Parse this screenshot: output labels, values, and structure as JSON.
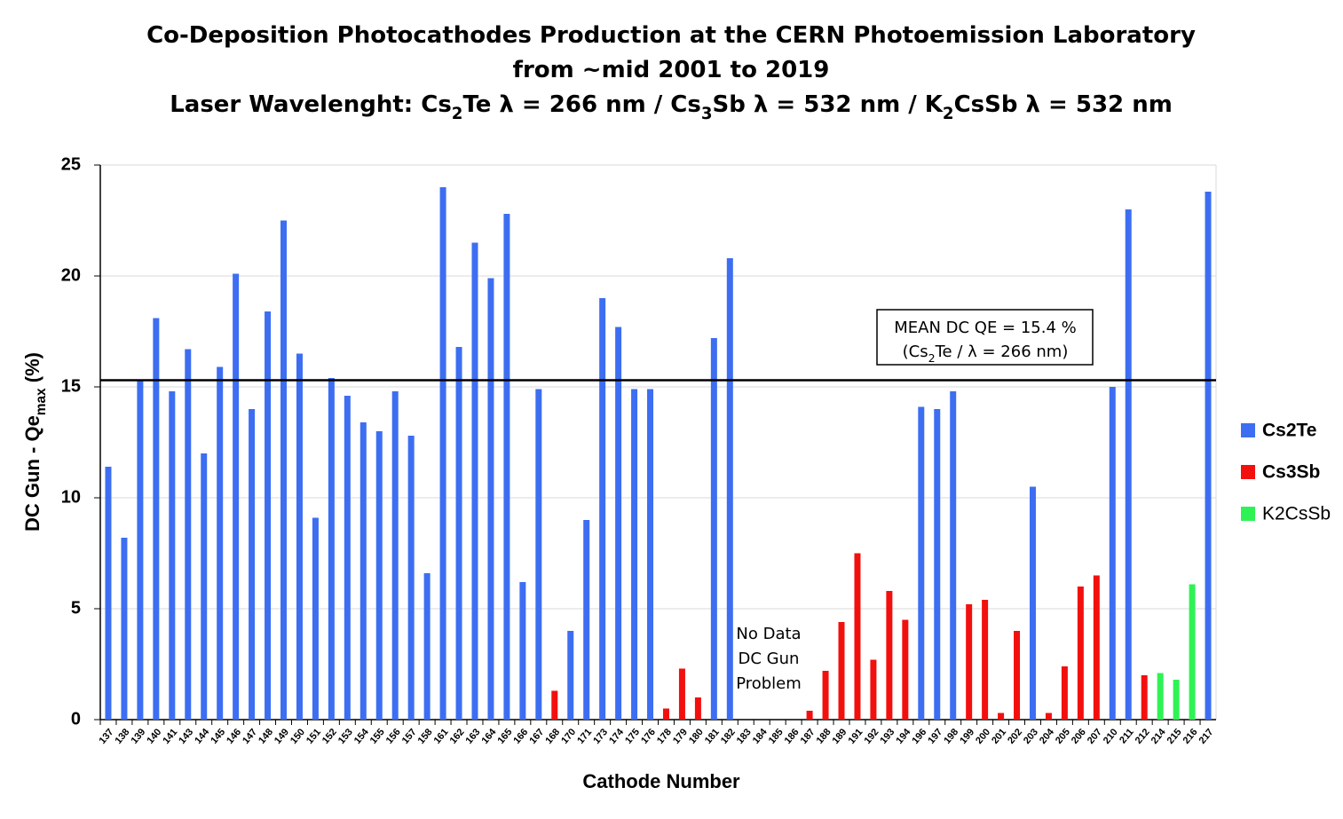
{
  "chart_data": {
    "type": "bar",
    "title_lines": [
      [
        {
          "text": "Co-Deposition Photocathodes Production at the CERN Photoemission Laboratory"
        }
      ],
      [
        {
          "text": "from ~mid 2001 to 2019"
        }
      ],
      [
        {
          "text": "Laser Wavelenght: Cs"
        },
        {
          "text": "2",
          "sub": true
        },
        {
          "text": "Te λ = 266 nm / Cs"
        },
        {
          "text": "3",
          "sub": true
        },
        {
          "text": "Sb λ = 532 nm / K"
        },
        {
          "text": "2",
          "sub": true
        },
        {
          "text": "CsSb λ = 532 nm"
        }
      ]
    ],
    "x_label": "Cathode Number",
    "y_label": [
      {
        "text": "DC Gun - Qe"
      },
      {
        "text": "max",
        "sub": true
      },
      {
        "text": " (%)"
      }
    ],
    "categories": [
      "137",
      "138",
      "139",
      "140",
      "141",
      "143",
      "144",
      "145",
      "146",
      "147",
      "148",
      "149",
      "150",
      "151",
      "152",
      "153",
      "154",
      "155",
      "156",
      "157",
      "158",
      "161",
      "162",
      "163",
      "164",
      "165",
      "166",
      "167",
      "168",
      "170",
      "171",
      "173",
      "174",
      "175",
      "176",
      "178",
      "179",
      "180",
      "181",
      "182",
      "183",
      "184",
      "185",
      "186",
      "187",
      "188",
      "189",
      "191",
      "192",
      "193",
      "194",
      "196",
      "197",
      "198",
      "199",
      "200",
      "201",
      "202",
      "203",
      "204",
      "205",
      "206",
      "207",
      "210",
      "211",
      "212",
      "214",
      "215",
      "216",
      "217"
    ],
    "series": [
      {
        "name": "Cs2Te",
        "color": "#3d6ef2",
        "values": [
          11.4,
          8.2,
          15.3,
          18.1,
          14.8,
          16.7,
          12.0,
          15.9,
          20.1,
          14.0,
          18.4,
          22.5,
          16.5,
          9.1,
          15.4,
          14.6,
          13.4,
          13.0,
          14.8,
          12.8,
          6.6,
          24.0,
          16.8,
          21.5,
          19.9,
          22.8,
          6.2,
          14.9,
          null,
          4.0,
          9.0,
          19.0,
          17.7,
          14.9,
          14.9,
          null,
          null,
          null,
          17.2,
          20.8,
          null,
          null,
          null,
          null,
          null,
          null,
          null,
          null,
          null,
          null,
          null,
          14.1,
          14.0,
          14.8,
          null,
          null,
          null,
          null,
          10.5,
          null,
          null,
          null,
          null,
          15.0,
          23.0,
          null,
          null,
          null,
          null,
          23.8
        ]
      },
      {
        "name": "Cs3Sb",
        "color": "#f2100f",
        "values": [
          null,
          null,
          null,
          null,
          null,
          null,
          null,
          null,
          null,
          null,
          null,
          null,
          null,
          null,
          null,
          null,
          null,
          null,
          null,
          null,
          null,
          null,
          null,
          null,
          null,
          null,
          null,
          null,
          1.3,
          null,
          null,
          null,
          null,
          null,
          null,
          0.5,
          2.3,
          1.0,
          null,
          null,
          null,
          null,
          null,
          null,
          0.4,
          2.2,
          4.4,
          7.5,
          2.7,
          5.8,
          4.5,
          null,
          null,
          null,
          5.2,
          5.4,
          0.3,
          4.0,
          null,
          0.3,
          2.4,
          6.0,
          6.5,
          null,
          null,
          2.0,
          null,
          null,
          null,
          null
        ]
      },
      {
        "name": "K2CsSb",
        "color": "#2ff255",
        "values": [
          null,
          null,
          null,
          null,
          null,
          null,
          null,
          null,
          null,
          null,
          null,
          null,
          null,
          null,
          null,
          null,
          null,
          null,
          null,
          null,
          null,
          null,
          null,
          null,
          null,
          null,
          null,
          null,
          null,
          null,
          null,
          null,
          null,
          null,
          null,
          null,
          null,
          null,
          null,
          null,
          null,
          null,
          null,
          null,
          null,
          null,
          null,
          null,
          null,
          null,
          null,
          null,
          null,
          null,
          null,
          null,
          null,
          null,
          null,
          null,
          null,
          null,
          null,
          null,
          null,
          null,
          2.1,
          1.8,
          6.1,
          null
        ]
      }
    ],
    "ylim": [
      0,
      25
    ],
    "yticks": [
      0,
      5,
      10,
      15,
      20,
      25
    ],
    "grid": true,
    "reference_line": 15.3,
    "mean_annotation": [
      [
        {
          "text": "MEAN DC QE = 15.4 %"
        }
      ],
      [
        {
          "text": "(Cs"
        },
        {
          "text": "2",
          "sub": true
        },
        {
          "text": "Te / λ = 266 nm)"
        }
      ]
    ],
    "gap_annotation": [
      "No Data",
      "DC Gun",
      "Problem"
    ],
    "legend": "right"
  }
}
